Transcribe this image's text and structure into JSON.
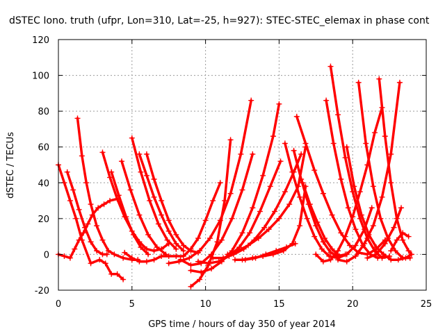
{
  "chart_data": {
    "type": "scatter",
    "title": "dSTEC Iono. truth (ufpr, Lon=310, Lat=-25, h=927): STEC-STEC_elemax in phase cont",
    "xlabel": "GPS time / hours of day 350 of year 2014",
    "ylabel": "dSTEC  / TECUs",
    "xlim": [
      0,
      25
    ],
    "ylim": [
      -20,
      120
    ],
    "xticks": [
      0,
      5,
      10,
      15,
      20,
      25
    ],
    "yticks": [
      -20,
      0,
      20,
      40,
      60,
      80,
      100,
      120
    ],
    "grid": true,
    "marker": "plus",
    "color": "#ff0000",
    "series": [
      {
        "x": [
          0.0,
          0.4,
          0.8,
          1.2,
          1.6,
          2.2,
          2.8,
          3.2,
          3.6,
          4.0,
          4.4
        ],
        "y": [
          50,
          40,
          30,
          20,
          8,
          -5,
          -3,
          -5,
          -11,
          -11,
          -14
        ]
      },
      {
        "x": [
          0.0,
          0.4,
          0.8,
          1.1,
          1.4,
          1.7,
          2.0,
          2.3,
          2.7,
          3.1,
          3.5,
          4.0
        ],
        "y": [
          0,
          -1,
          -2,
          3,
          8,
          12,
          17,
          22,
          26,
          28,
          30,
          31
        ]
      },
      {
        "x": [
          0.6,
          1.0,
          1.4,
          1.8,
          2.2,
          2.6,
          3.0,
          3.3
        ],
        "y": [
          46,
          36,
          25,
          15,
          7,
          2,
          0,
          0
        ]
      },
      {
        "x": [
          1.3,
          1.6,
          1.9,
          2.2,
          2.6,
          3.0,
          3.4,
          3.8,
          4.4,
          5.0,
          5.4
        ],
        "y": [
          76,
          55,
          40,
          28,
          16,
          8,
          2,
          0,
          -2,
          -3,
          -3
        ]
      },
      {
        "x": [
          3.0,
          3.5,
          4.0,
          4.5,
          5.0,
          5.5,
          6.0,
          6.5,
          7.0,
          7.5
        ],
        "y": [
          57,
          43,
          31,
          21,
          13,
          7,
          3,
          2,
          3,
          6
        ]
      },
      {
        "x": [
          3.6,
          4.1,
          4.6,
          5.1,
          5.6,
          6.1
        ],
        "y": [
          46,
          33,
          21,
          11,
          4,
          0
        ]
      },
      {
        "x": [
          4.3,
          4.9,
          5.5,
          6.1,
          6.7,
          7.3
        ],
        "y": [
          52,
          36,
          22,
          11,
          4,
          0
        ]
      },
      {
        "x": [
          5.0,
          5.6,
          6.2,
          6.8,
          7.4,
          8.0
        ],
        "y": [
          65,
          46,
          30,
          17,
          8,
          3
        ]
      },
      {
        "x": [
          5.5,
          6.0,
          6.5,
          7.0,
          7.5,
          8.0,
          8.5
        ],
        "y": [
          56,
          44,
          32,
          22,
          13,
          6,
          2
        ]
      },
      {
        "x": [
          6.0,
          6.5,
          7.0,
          7.5,
          8.0,
          8.5,
          9.0,
          9.5
        ],
        "y": [
          56,
          42,
          30,
          19,
          11,
          5,
          2,
          1
        ]
      },
      {
        "x": [
          4.5,
          5.0,
          5.5,
          6.0,
          6.5,
          7.0,
          7.5,
          8.0,
          8.5,
          9.0,
          9.5,
          10.0,
          10.5,
          11.0
        ],
        "y": [
          1,
          -2,
          -4,
          -4,
          -3,
          -1,
          -1,
          -1,
          -1,
          3,
          9,
          19,
          30,
          40
        ]
      },
      {
        "x": [
          7.5,
          8.2,
          8.9,
          9.6,
          10.3,
          11.0,
          11.7,
          12.4,
          13.1
        ],
        "y": [
          -5,
          -4,
          -2,
          2,
          9,
          19,
          34,
          56,
          86
        ]
      },
      {
        "x": [
          9.0,
          9.6,
          10.2,
          10.8,
          11.3,
          11.7
        ],
        "y": [
          -18,
          -14,
          -6,
          7,
          30,
          64
        ]
      },
      {
        "x": [
          8.3,
          9.0,
          9.7,
          10.4,
          11.1,
          11.8,
          12.5,
          13.2
        ],
        "y": [
          -3,
          -6,
          -5,
          0,
          8,
          20,
          36,
          56
        ]
      },
      {
        "x": [
          9.0,
          9.7,
          10.4,
          11.1,
          11.8,
          12.5,
          13.2,
          13.9,
          14.6,
          15.0
        ],
        "y": [
          -9,
          -10,
          -8,
          -4,
          2,
          12,
          26,
          44,
          66,
          84
        ]
      },
      {
        "x": [
          9.5,
          10.2,
          10.9,
          11.6,
          12.3,
          13.0,
          13.7,
          14.4,
          15.1
        ],
        "y": [
          -4,
          -5,
          -4,
          -1,
          4,
          12,
          24,
          38,
          52
        ]
      },
      {
        "x": [
          10.5,
          11.2,
          11.9,
          12.6,
          13.3,
          14.0,
          14.7,
          15.4,
          16.0,
          16.5
        ],
        "y": [
          -2,
          -2,
          0,
          3,
          8,
          15,
          24,
          35,
          46,
          56
        ]
      },
      {
        "x": [
          11.5,
          12.2,
          12.9,
          13.6,
          14.3,
          15.0,
          15.7,
          16.3,
          16.8
        ],
        "y": [
          0,
          2,
          5,
          9,
          14,
          20,
          28,
          38,
          60
        ]
      },
      {
        "x": [
          12.0,
          12.7,
          13.4,
          14.1,
          14.8,
          15.5,
          16.1
        ],
        "y": [
          -3,
          -3,
          -2,
          0,
          2,
          4,
          6
        ]
      },
      {
        "x": [
          12.5,
          13.2,
          13.9,
          14.6,
          15.3,
          15.9,
          16.4,
          16.8
        ],
        "y": [
          -3,
          -2,
          -1,
          0,
          2,
          6,
          16,
          38
        ]
      },
      {
        "x": [
          16.2,
          16.8,
          17.4,
          18.0,
          18.6,
          19.2,
          19.8,
          20.4,
          21.0,
          21.6,
          22.2
        ],
        "y": [
          77,
          62,
          47,
          34,
          22,
          12,
          5,
          1,
          0,
          3,
          8
        ]
      },
      {
        "x": [
          15.4,
          15.9,
          16.4,
          16.9,
          17.4,
          17.9,
          18.4,
          19.0,
          19.6,
          20.2,
          20.8,
          21.3
        ],
        "y": [
          62,
          46,
          32,
          20,
          10,
          3,
          -1,
          -2,
          0,
          5,
          14,
          26
        ]
      },
      {
        "x": [
          16.0,
          16.5,
          17.0,
          17.5,
          18.0,
          18.5,
          19.0,
          19.5
        ],
        "y": [
          58,
          42,
          28,
          16,
          7,
          1,
          -1,
          0
        ]
      },
      {
        "x": [
          16.6,
          17.1,
          17.6,
          18.1,
          18.6,
          19.1,
          19.6
        ],
        "y": [
          40,
          28,
          18,
          9,
          3,
          -1,
          0
        ]
      },
      {
        "x": [
          18.5,
          19.0,
          19.5,
          20.0,
          20.5,
          21.0,
          21.5,
          22.0,
          22.5
        ],
        "y": [
          105,
          78,
          54,
          35,
          20,
          9,
          2,
          -2,
          -1
        ]
      },
      {
        "x": [
          18.2,
          18.7,
          19.2,
          19.7,
          20.2,
          20.7,
          21.2,
          21.7,
          22.2
        ],
        "y": [
          86,
          62,
          42,
          26,
          14,
          5,
          0,
          -2,
          -1
        ]
      },
      {
        "x": [
          19.6,
          20.1,
          20.6,
          21.1,
          21.6,
          22.1,
          22.6,
          23.1,
          23.6,
          24.0
        ],
        "y": [
          60,
          38,
          22,
          11,
          4,
          0,
          -3,
          -3,
          -2,
          0
        ]
      },
      {
        "x": [
          20.4,
          20.9,
          21.4,
          21.9,
          22.4,
          22.9,
          23.4,
          23.9
        ],
        "y": [
          96,
          62,
          38,
          20,
          9,
          2,
          -2,
          -2
        ]
      },
      {
        "x": [
          21.8,
          22.2,
          22.6,
          23.0,
          23.4,
          23.8,
          24.0
        ],
        "y": [
          98,
          66,
          40,
          20,
          8,
          2,
          0
        ]
      },
      {
        "x": [
          17.5,
          18.0,
          18.5,
          19.0,
          19.5,
          20.0,
          20.5,
          21.0,
          21.5,
          22.0
        ],
        "y": [
          0,
          -4,
          -3,
          2,
          10,
          21,
          35,
          50,
          68,
          82
        ]
      },
      {
        "x": [
          19.0,
          19.6,
          20.2,
          20.8,
          21.4,
          22.0,
          22.6,
          23.2
        ],
        "y": [
          -3,
          -4,
          -1,
          6,
          16,
          32,
          56,
          96
        ]
      },
      {
        "x": [
          21.0,
          21.6,
          22.2,
          22.8,
          23.3
        ],
        "y": [
          -2,
          0,
          6,
          15,
          26
        ]
      },
      {
        "x": [
          22.6,
          23.0,
          23.4,
          23.8
        ],
        "y": [
          2,
          8,
          12,
          10
        ]
      }
    ]
  }
}
